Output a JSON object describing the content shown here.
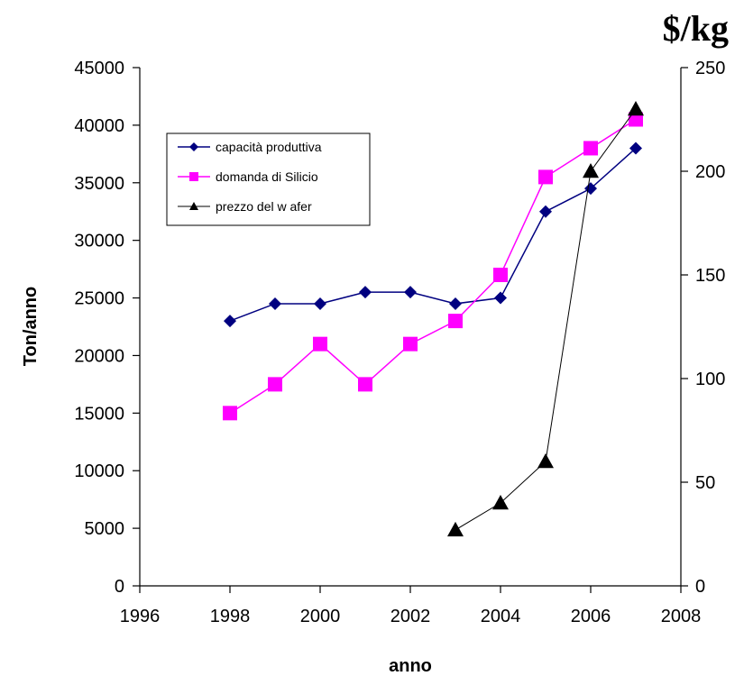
{
  "chart_data": {
    "type": "line",
    "title": "",
    "xlabel": "anno",
    "ylabel": "Ton/anno",
    "y2label": "$/kg",
    "xlim": [
      1996,
      2008
    ],
    "ylim": [
      0,
      45000
    ],
    "y2lim": [
      0,
      250
    ],
    "x_ticks": [
      "1996",
      "1998",
      "2000",
      "2002",
      "2004",
      "2006",
      "2008"
    ],
    "y_ticks": [
      "0",
      "5000",
      "10000",
      "15000",
      "20000",
      "25000",
      "30000",
      "35000",
      "40000",
      "45000"
    ],
    "y2_ticks": [
      "0",
      "50",
      "100",
      "150",
      "200",
      "250"
    ],
    "grid": false,
    "legend_position": "upper-left",
    "series": [
      {
        "name": "capacità produttiva",
        "axis": "left",
        "color": "#000080",
        "marker": "diamond",
        "x": [
          1998,
          1999,
          2000,
          2001,
          2002,
          2003,
          2004,
          2005,
          2006,
          2007
        ],
        "values": [
          23000,
          24500,
          24500,
          25500,
          25500,
          24500,
          25000,
          32500,
          34500,
          38000
        ]
      },
      {
        "name": "domanda di Silicio",
        "axis": "left",
        "color": "#ff00ff",
        "marker": "square",
        "x": [
          1998,
          1999,
          2000,
          2001,
          2002,
          2003,
          2004,
          2005,
          2006,
          2007
        ],
        "values": [
          15000,
          17500,
          21000,
          17500,
          21000,
          23000,
          27000,
          35500,
          38000,
          40500
        ]
      },
      {
        "name": "prezzo del w afer",
        "axis": "right",
        "color": "#000000",
        "marker": "triangle",
        "x": [
          2003,
          2004,
          2005,
          2006,
          2007
        ],
        "values": [
          27,
          40,
          60,
          200,
          230
        ]
      }
    ]
  }
}
